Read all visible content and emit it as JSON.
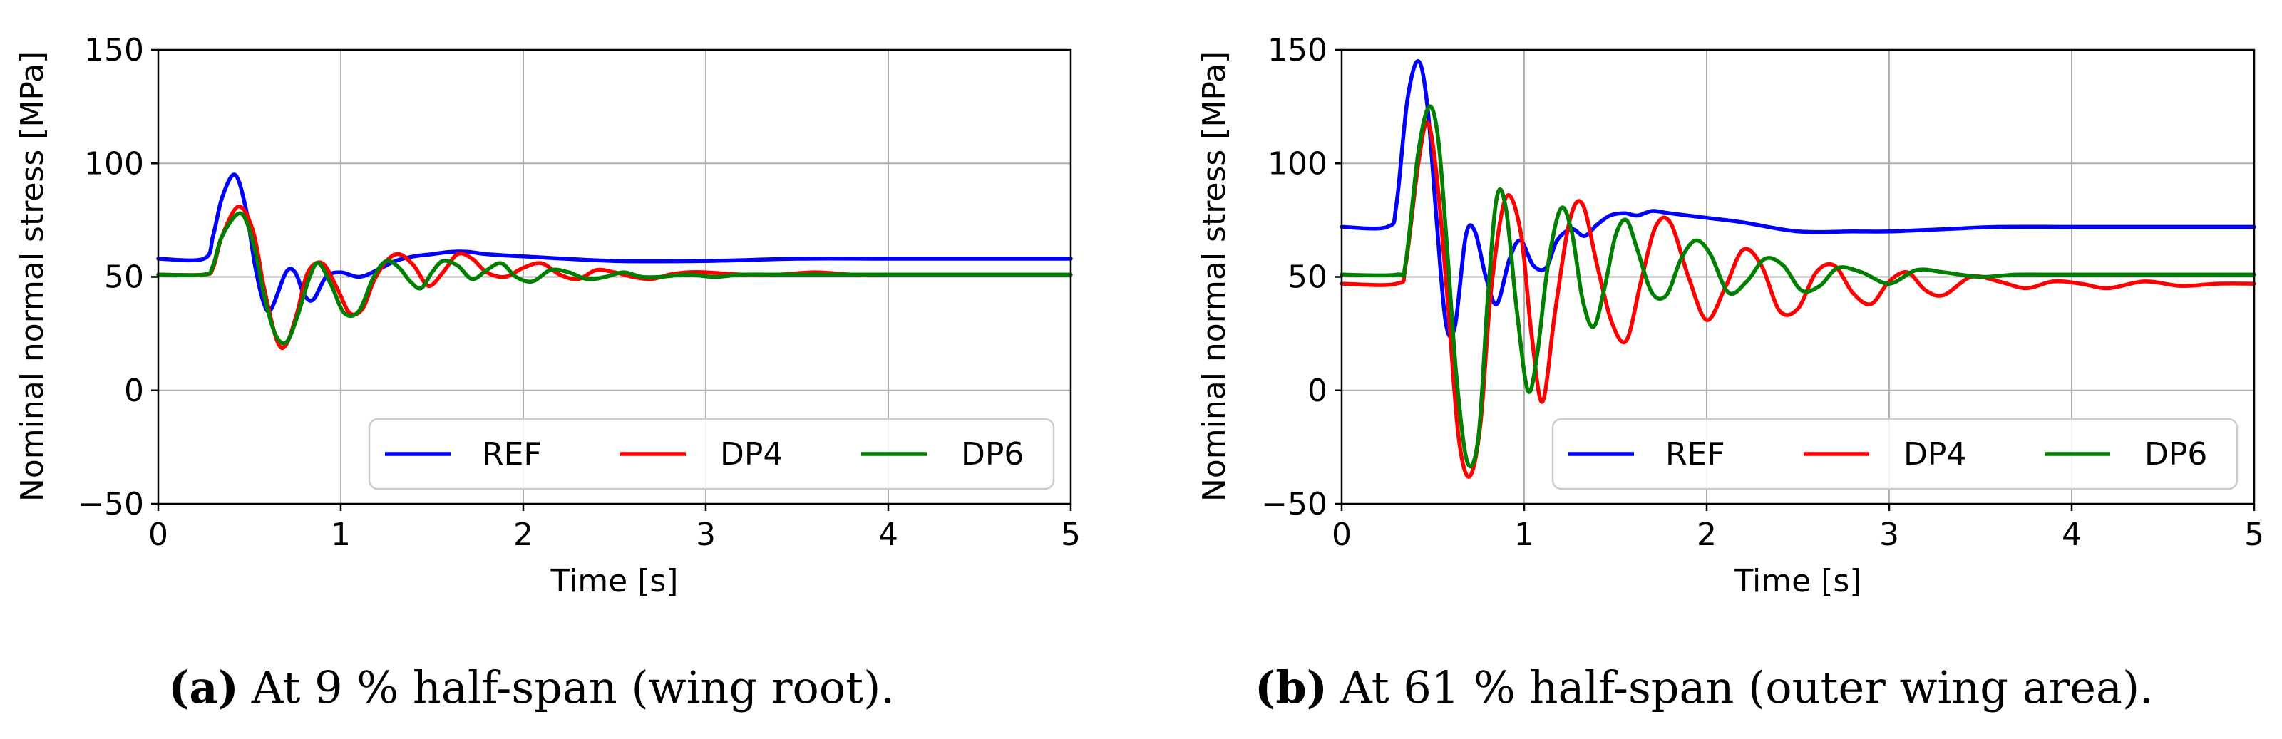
{
  "chart_data": [
    {
      "type": "line",
      "panel_label": "(a)",
      "caption": "At 9 % half-span (wing root).",
      "xlabel": "Time [s]",
      "ylabel": "Nominal normal stress [MPa]",
      "xlim": [
        0,
        5
      ],
      "ylim": [
        -50,
        150
      ],
      "xticks": [
        0,
        1,
        2,
        3,
        4,
        5
      ],
      "yticks": [
        -50,
        0,
        50,
        100,
        150
      ],
      "xtick_labels": [
        "0",
        "1",
        "2",
        "3",
        "4",
        "5"
      ],
      "ytick_labels": [
        "−50",
        "0",
        "50",
        "100",
        "150"
      ],
      "grid": true,
      "legend_position": "lower-right",
      "series": [
        {
          "name": "REF",
          "color": "#0000ff",
          "x": [
            0,
            0.25,
            0.3,
            0.35,
            0.42,
            0.48,
            0.53,
            0.58,
            0.62,
            0.7,
            0.75,
            0.8,
            0.85,
            0.92,
            1.0,
            1.1,
            1.2,
            1.3,
            1.4,
            1.5,
            1.6,
            1.7,
            1.8,
            2.0,
            2.5,
            3.0,
            3.5,
            4.0,
            4.5,
            5.0
          ],
          "y": [
            58,
            58,
            68,
            85,
            95,
            80,
            55,
            38,
            36,
            52,
            52,
            42,
            40,
            50,
            52,
            50,
            53,
            57,
            59,
            60,
            61,
            61,
            60,
            59,
            57,
            57,
            58,
            58,
            58,
            58
          ]
        },
        {
          "name": "DP4",
          "color": "#ff0000",
          "x": [
            0,
            0.25,
            0.3,
            0.35,
            0.44,
            0.52,
            0.58,
            0.65,
            0.7,
            0.76,
            0.82,
            0.9,
            0.98,
            1.05,
            1.12,
            1.18,
            1.25,
            1.32,
            1.4,
            1.48,
            1.56,
            1.64,
            1.72,
            1.8,
            1.9,
            2.0,
            2.1,
            2.2,
            2.3,
            2.4,
            2.5,
            2.6,
            2.7,
            2.8,
            2.9,
            3.0,
            3.2,
            3.4,
            3.6,
            3.8,
            4.0,
            4.3,
            4.6,
            5.0
          ],
          "y": [
            51,
            51,
            54,
            68,
            81,
            70,
            45,
            22,
            20,
            34,
            52,
            56,
            45,
            34,
            36,
            48,
            57,
            60,
            55,
            46,
            52,
            60,
            58,
            52,
            50,
            54,
            56,
            51,
            49,
            53,
            52,
            50,
            49,
            51,
            52,
            52,
            51,
            51,
            52,
            51,
            51,
            51,
            51,
            51
          ]
        },
        {
          "name": "DP6",
          "color": "#008000",
          "x": [
            0,
            0.25,
            0.3,
            0.35,
            0.45,
            0.52,
            0.58,
            0.64,
            0.7,
            0.76,
            0.83,
            0.88,
            0.95,
            1.02,
            1.1,
            1.18,
            1.25,
            1.32,
            1.38,
            1.44,
            1.5,
            1.56,
            1.64,
            1.72,
            1.8,
            1.88,
            1.96,
            2.05,
            2.15,
            2.25,
            2.35,
            2.45,
            2.55,
            2.65,
            2.75,
            2.9,
            3.05,
            3.2,
            3.4,
            3.6,
            3.8,
            4.0,
            4.3,
            4.6,
            5.0
          ],
          "y": [
            51,
            51,
            55,
            68,
            78,
            65,
            42,
            25,
            21,
            32,
            50,
            56,
            46,
            34,
            35,
            50,
            57,
            54,
            48,
            45,
            52,
            57,
            55,
            49,
            53,
            56,
            50,
            48,
            53,
            52,
            49,
            50,
            52,
            50,
            50,
            51,
            50,
            51,
            51,
            51,
            51,
            51,
            51,
            51,
            51
          ]
        }
      ]
    },
    {
      "type": "line",
      "panel_label": "(b)",
      "caption": "At 61 % half-span (outer wing area).",
      "xlabel": "Time [s]",
      "ylabel": "Nominal normal stress [MPa]",
      "xlim": [
        0,
        5
      ],
      "ylim": [
        -50,
        150
      ],
      "xticks": [
        0,
        1,
        2,
        3,
        4,
        5
      ],
      "yticks": [
        -50,
        0,
        50,
        100,
        150
      ],
      "xtick_labels": [
        "0",
        "1",
        "2",
        "3",
        "4",
        "5"
      ],
      "ytick_labels": [
        "−50",
        "0",
        "50",
        "100",
        "150"
      ],
      "grid": true,
      "legend_position": "lower-right",
      "series": [
        {
          "name": "REF",
          "color": "#0000ff",
          "x": [
            0,
            0.25,
            0.3,
            0.36,
            0.42,
            0.47,
            0.52,
            0.57,
            0.62,
            0.68,
            0.73,
            0.79,
            0.85,
            0.92,
            0.98,
            1.05,
            1.12,
            1.18,
            1.26,
            1.33,
            1.4,
            1.47,
            1.55,
            1.62,
            1.7,
            1.8,
            2.0,
            2.2,
            2.5,
            2.8,
            3.0,
            3.3,
            3.6,
            4.0,
            4.5,
            5.0
          ],
          "y": [
            72,
            72,
            82,
            128,
            145,
            125,
            75,
            30,
            28,
            68,
            70,
            50,
            38,
            58,
            66,
            55,
            54,
            66,
            71,
            68,
            73,
            77,
            78,
            77,
            79,
            78,
            76,
            74,
            70,
            70,
            70,
            71,
            72,
            72,
            72,
            72
          ]
        },
        {
          "name": "DP4",
          "color": "#ff0000",
          "x": [
            0,
            0.3,
            0.35,
            0.42,
            0.47,
            0.52,
            0.58,
            0.64,
            0.7,
            0.76,
            0.82,
            0.9,
            0.98,
            1.04,
            1.1,
            1.17,
            1.25,
            1.32,
            1.4,
            1.48,
            1.56,
            1.64,
            1.72,
            1.8,
            1.9,
            2.0,
            2.1,
            2.2,
            2.3,
            2.4,
            2.5,
            2.6,
            2.7,
            2.8,
            2.9,
            3.0,
            3.1,
            3.2,
            3.3,
            3.45,
            3.6,
            3.75,
            3.9,
            4.05,
            4.2,
            4.4,
            4.6,
            4.8,
            5.0
          ],
          "y": [
            47,
            47,
            55,
            100,
            118,
            95,
            40,
            -20,
            -38,
            -15,
            45,
            85,
            70,
            25,
            -5,
            35,
            75,
            82,
            55,
            30,
            22,
            48,
            72,
            74,
            50,
            31,
            45,
            62,
            55,
            35,
            36,
            52,
            55,
            43,
            38,
            48,
            52,
            44,
            42,
            50,
            48,
            45,
            48,
            47,
            45,
            48,
            46,
            47,
            47
          ]
        },
        {
          "name": "DP6",
          "color": "#008000",
          "x": [
            0,
            0.3,
            0.35,
            0.42,
            0.48,
            0.53,
            0.58,
            0.63,
            0.69,
            0.75,
            0.8,
            0.85,
            0.9,
            0.96,
            1.02,
            1.07,
            1.13,
            1.2,
            1.26,
            1.32,
            1.38,
            1.44,
            1.5,
            1.56,
            1.62,
            1.7,
            1.78,
            1.86,
            1.94,
            2.02,
            2.12,
            2.22,
            2.32,
            2.42,
            2.52,
            2.62,
            2.72,
            2.85,
            3.0,
            3.15,
            3.3,
            3.5,
            3.7,
            3.9,
            4.1,
            4.4,
            4.7,
            5.0
          ],
          "y": [
            51,
            51,
            56,
            105,
            125,
            110,
            60,
            5,
            -32,
            -20,
            40,
            85,
            80,
            35,
            0,
            15,
            55,
            80,
            70,
            40,
            28,
            45,
            68,
            75,
            62,
            43,
            42,
            58,
            66,
            60,
            43,
            48,
            58,
            55,
            44,
            46,
            54,
            52,
            47,
            53,
            52,
            50,
            51,
            51,
            51,
            51,
            51,
            51
          ]
        }
      ]
    }
  ],
  "legend": [
    {
      "name": "REF",
      "color": "#0000ff"
    },
    {
      "name": "DP4",
      "color": "#ff0000"
    },
    {
      "name": "DP6",
      "color": "#008000"
    }
  ]
}
